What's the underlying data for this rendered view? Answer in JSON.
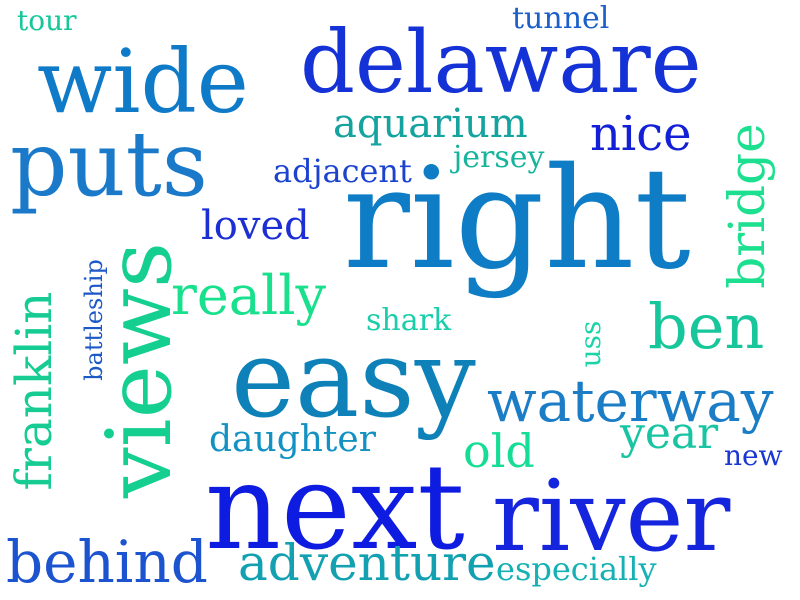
{
  "cloud": {
    "words": [
      {
        "id": "tour",
        "text": "tour",
        "color": "#16c79a"
      },
      {
        "id": "tunnel",
        "text": "tunnel",
        "color": "#1c5fc9"
      },
      {
        "id": "wide",
        "text": "wide",
        "color": "#0f7bc8"
      },
      {
        "id": "delaware",
        "text": "delaware",
        "color": "#1532d6"
      },
      {
        "id": "aquarium",
        "text": "aquarium",
        "color": "#15a3a0"
      },
      {
        "id": "nice",
        "text": "nice",
        "color": "#1320d6"
      },
      {
        "id": "puts",
        "text": "puts",
        "color": "#1a79c8"
      },
      {
        "id": "adjacent",
        "text": "adjacent",
        "color": "#1c43cf"
      },
      {
        "id": "jersey",
        "text": "jersey",
        "color": "#16b49c"
      },
      {
        "id": "bridge",
        "text": "bridge",
        "color": "#1ce08f"
      },
      {
        "id": "right",
        "text": "right",
        "color": "#0e7dc6"
      },
      {
        "id": "loved",
        "text": "loved",
        "color": "#1c2fd4"
      },
      {
        "id": "views",
        "text": "views",
        "color": "#14cf8f"
      },
      {
        "id": "franklin",
        "text": "franklin",
        "color": "#16cc92"
      },
      {
        "id": "battleship",
        "text": "battleship",
        "color": "#1c58c6"
      },
      {
        "id": "really",
        "text": "really",
        "color": "#19e08c"
      },
      {
        "id": "shark",
        "text": "shark",
        "color": "#1aceaa"
      },
      {
        "id": "uss",
        "text": "uss",
        "color": "#1bd3a8"
      },
      {
        "id": "ben",
        "text": "ben",
        "color": "#17c69a"
      },
      {
        "id": "easy",
        "text": "easy",
        "color": "#0e82b8"
      },
      {
        "id": "waterway",
        "text": "waterway",
        "color": "#1a7dc6"
      },
      {
        "id": "daughter",
        "text": "daughter",
        "color": "#1391c2"
      },
      {
        "id": "old",
        "text": "old",
        "color": "#16dd95"
      },
      {
        "id": "year",
        "text": "year",
        "color": "#19c4a3"
      },
      {
        "id": "new",
        "text": "new",
        "color": "#1a37d2"
      },
      {
        "id": "next",
        "text": "next",
        "color": "#0e1be0"
      },
      {
        "id": "river",
        "text": "river",
        "color": "#1524dd"
      },
      {
        "id": "behind",
        "text": "behind",
        "color": "#1c53cf"
      },
      {
        "id": "adventure",
        "text": "adventure",
        "color": "#13a1b2"
      },
      {
        "id": "especially",
        "text": "especially",
        "color": "#16b1b4"
      }
    ]
  }
}
